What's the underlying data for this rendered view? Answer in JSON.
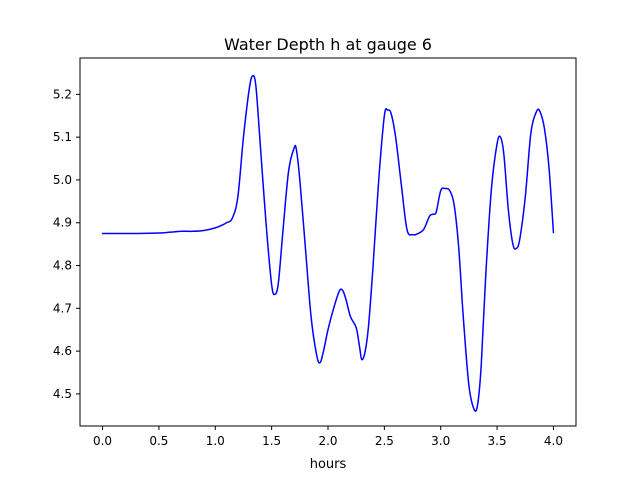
{
  "chart_data": {
    "type": "line",
    "title": "Water Depth h at gauge 6",
    "xlabel": "hours",
    "ylabel": "",
    "xlim": [
      -0.2,
      4.2
    ],
    "ylim": [
      4.425,
      5.285
    ],
    "xticks": [
      0.0,
      0.5,
      1.0,
      1.5,
      2.0,
      2.5,
      3.0,
      3.5,
      4.0
    ],
    "xtick_labels": [
      "0.0",
      "0.5",
      "1.0",
      "1.5",
      "2.0",
      "2.5",
      "3.0",
      "3.5",
      "4.0"
    ],
    "yticks": [
      4.5,
      4.6,
      4.7,
      4.8,
      4.9,
      5.0,
      5.1,
      5.2
    ],
    "ytick_labels": [
      "4.5",
      "4.6",
      "4.7",
      "4.8",
      "4.9",
      "5.0",
      "5.1",
      "5.2"
    ],
    "grid": false,
    "color": "#0000ff",
    "series": [
      {
        "x": [
          0.0,
          0.3,
          0.5,
          0.6,
          0.7,
          0.8,
          0.9,
          1.0,
          1.05,
          1.1,
          1.15,
          1.2,
          1.25,
          1.3,
          1.33,
          1.36,
          1.4,
          1.45,
          1.5,
          1.53,
          1.56,
          1.6,
          1.65,
          1.7,
          1.72,
          1.75,
          1.8,
          1.85,
          1.9,
          1.93,
          1.96,
          2.0,
          2.05,
          2.1,
          2.13,
          2.16,
          2.2,
          2.25,
          2.28,
          2.3,
          2.33,
          2.36,
          2.4,
          2.45,
          2.5,
          2.53,
          2.56,
          2.6,
          2.65,
          2.7,
          2.75,
          2.8,
          2.85,
          2.9,
          2.93,
          2.96,
          3.0,
          3.04,
          3.08,
          3.12,
          3.16,
          3.2,
          3.25,
          3.3,
          3.33,
          3.36,
          3.4,
          3.45,
          3.5,
          3.53,
          3.56,
          3.6,
          3.64,
          3.67,
          3.7,
          3.75,
          3.8,
          3.85,
          3.88,
          3.92,
          3.96,
          4.0
        ],
        "y": [
          4.875,
          4.875,
          4.876,
          4.878,
          4.88,
          4.88,
          4.882,
          4.888,
          4.893,
          4.9,
          4.91,
          4.96,
          5.1,
          5.21,
          5.243,
          5.22,
          5.08,
          4.9,
          4.755,
          4.733,
          4.76,
          4.88,
          5.02,
          5.075,
          5.07,
          5.0,
          4.84,
          4.68,
          4.59,
          4.573,
          4.6,
          4.65,
          4.7,
          4.74,
          4.742,
          4.72,
          4.68,
          4.655,
          4.61,
          4.58,
          4.6,
          4.66,
          4.8,
          5.0,
          5.15,
          5.163,
          5.155,
          5.1,
          4.99,
          4.885,
          4.872,
          4.875,
          4.885,
          4.915,
          4.92,
          4.925,
          4.975,
          4.98,
          4.975,
          4.94,
          4.84,
          4.68,
          4.52,
          4.462,
          4.48,
          4.57,
          4.78,
          4.98,
          5.085,
          5.1,
          5.06,
          4.93,
          4.85,
          4.84,
          4.86,
          4.96,
          5.11,
          5.16,
          5.16,
          5.12,
          5.03,
          4.877
        ]
      }
    ]
  }
}
